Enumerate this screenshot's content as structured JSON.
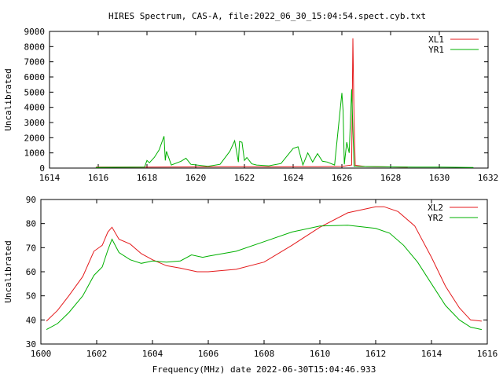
{
  "title": "HIRES Spectrum, CAS-A, file:2022_06_30_15:04:54.spect.cyb.txt",
  "colors": {
    "red": "#e41a1c",
    "green": "#00b000"
  },
  "chart_data": [
    {
      "type": "line",
      "ylabel": "Uncalibrated",
      "xlim": [
        1614,
        1632
      ],
      "ylim": [
        0,
        9000
      ],
      "xticks": [
        1614,
        1616,
        1618,
        1620,
        1622,
        1624,
        1626,
        1628,
        1630,
        1632
      ],
      "yticks": [
        0,
        1000,
        2000,
        3000,
        4000,
        5000,
        6000,
        7000,
        8000,
        9000
      ],
      "legend_position": "top-right",
      "series": [
        {
          "name": "XL1",
          "color": "#e41a1c",
          "x": [
            1615.9,
            1618.0,
            1619.0,
            1620.0,
            1621.0,
            1622.0,
            1623.0,
            1624.0,
            1625.0,
            1626.0,
            1626.4,
            1626.45,
            1626.5,
            1626.55,
            1627.0,
            1628.0,
            1628.7
          ],
          "y": [
            60,
            60,
            70,
            80,
            90,
            90,
            80,
            90,
            90,
            110,
            200,
            8550,
            3150,
            180,
            100,
            80,
            60
          ]
        },
        {
          "name": "YR1",
          "color": "#00b000",
          "x": [
            1615.9,
            1617.9,
            1618.0,
            1618.1,
            1618.3,
            1618.5,
            1618.7,
            1618.75,
            1618.8,
            1619.0,
            1619.4,
            1619.6,
            1619.8,
            1620.5,
            1621.0,
            1621.4,
            1621.6,
            1621.75,
            1621.8,
            1621.9,
            1622.0,
            1622.1,
            1622.3,
            1622.5,
            1623.0,
            1623.5,
            1624.0,
            1624.2,
            1624.4,
            1624.6,
            1624.8,
            1625.0,
            1625.2,
            1625.4,
            1625.7,
            1626.0,
            1626.05,
            1626.1,
            1626.2,
            1626.3,
            1626.4,
            1626.5,
            1628.0,
            1629.0,
            1630.0,
            1631.4
          ],
          "y": [
            40,
            60,
            500,
            350,
            700,
            1200,
            2100,
            500,
            1100,
            200,
            450,
            650,
            250,
            120,
            250,
            1100,
            1800,
            400,
            1750,
            1700,
            500,
            700,
            280,
            200,
            150,
            300,
            1300,
            1400,
            200,
            1000,
            400,
            950,
            450,
            400,
            200,
            4950,
            3800,
            250,
            1700,
            1000,
            5200,
            120,
            80,
            60,
            60,
            40
          ]
        }
      ]
    },
    {
      "type": "line",
      "xlabel": "Frequency(MHz) date 2022-06-30T15:04:46.933",
      "ylabel": "Uncalibrated",
      "xlim": [
        1600,
        1616
      ],
      "ylim": [
        30,
        90
      ],
      "xticks": [
        1600,
        1602,
        1604,
        1606,
        1608,
        1610,
        1612,
        1614,
        1616
      ],
      "yticks": [
        30,
        40,
        50,
        60,
        70,
        80,
        90
      ],
      "legend_position": "top-right",
      "series": [
        {
          "name": "XL2",
          "color": "#e41a1c",
          "x": [
            1600.2,
            1600.6,
            1601.0,
            1601.5,
            1601.9,
            1602.2,
            1602.4,
            1602.55,
            1602.8,
            1603.2,
            1603.6,
            1604.0,
            1604.5,
            1605.0,
            1605.6,
            1606.0,
            1607.0,
            1608.0,
            1609.0,
            1610.0,
            1611.0,
            1612.0,
            1612.3,
            1612.8,
            1613.4,
            1614.0,
            1614.5,
            1615.0,
            1615.4,
            1615.8
          ],
          "y": [
            39.5,
            44.0,
            50.0,
            58.0,
            68.5,
            71.0,
            76.5,
            78.5,
            73.5,
            71.5,
            67.5,
            65.0,
            62.5,
            61.5,
            60.0,
            60.0,
            61.0,
            64.0,
            71.0,
            78.5,
            84.5,
            87.0,
            87.0,
            85.0,
            79.0,
            66.0,
            54.0,
            45.0,
            40.0,
            39.5
          ]
        },
        {
          "name": "YR2",
          "color": "#00b000",
          "x": [
            1600.2,
            1600.6,
            1601.0,
            1601.5,
            1601.9,
            1602.2,
            1602.4,
            1602.55,
            1602.8,
            1603.2,
            1603.6,
            1604.0,
            1604.5,
            1605.0,
            1605.4,
            1605.8,
            1606.0,
            1607.0,
            1608.0,
            1609.0,
            1610.0,
            1611.0,
            1612.0,
            1612.5,
            1613.0,
            1613.5,
            1614.0,
            1614.5,
            1615.0,
            1615.4,
            1615.8
          ],
          "y": [
            36.0,
            38.5,
            43.0,
            50.0,
            58.5,
            62.0,
            69.0,
            73.5,
            68.0,
            65.0,
            63.5,
            64.5,
            64.0,
            64.5,
            67.0,
            66.0,
            66.5,
            68.5,
            72.5,
            76.5,
            79.0,
            79.3,
            78.0,
            76.0,
            71.0,
            64.0,
            55.0,
            46.0,
            40.0,
            37.0,
            36.0
          ]
        }
      ]
    }
  ]
}
